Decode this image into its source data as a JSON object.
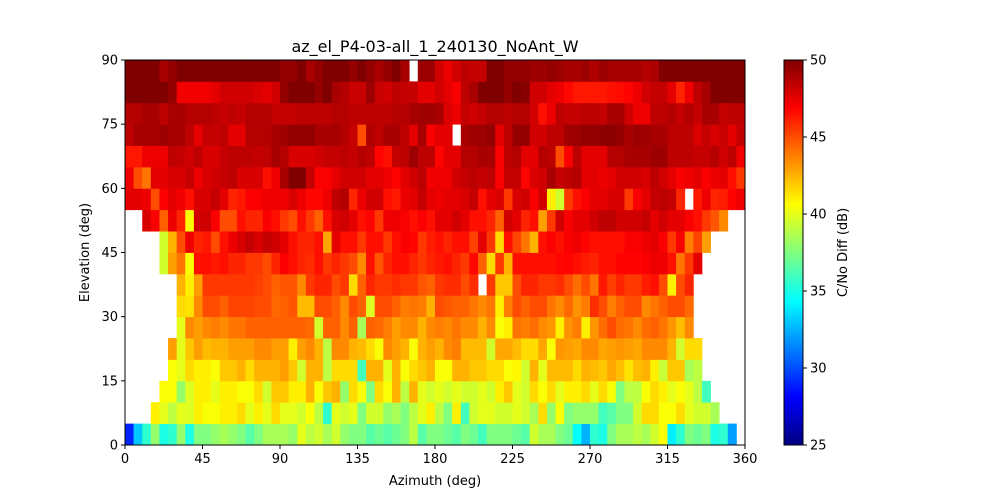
{
  "chart_data": {
    "type": "heatmap",
    "title": "az_el_P4-03-all_1_240130_NoAnt_W",
    "xlabel": "Azimuth (deg)",
    "ylabel": "Elevation (deg)",
    "xlim": [
      0,
      360
    ],
    "ylim": [
      0,
      90
    ],
    "x_bin_deg": 5,
    "y_bin_deg": 5,
    "xticks": [
      "0",
      "45",
      "90",
      "135",
      "180",
      "225",
      "270",
      "315",
      "360"
    ],
    "yticks": [
      "0",
      "15",
      "30",
      "45",
      "60",
      "75",
      "90"
    ],
    "colorbar": {
      "label": "C/No Diff (dB)",
      "colormap": "jet",
      "range": [
        25,
        50
      ],
      "ticks": [
        "25",
        "30",
        "35",
        "40",
        "45",
        "50"
      ]
    },
    "rows_order": "elevation 0-5 first, 85-90 last; columns azimuth 0-5 .. 355-360",
    "values": [
      [
        29,
        33,
        35.5,
        38,
        35,
        35.5,
        38,
        35,
        37.5,
        37.5,
        38,
        38.5,
        38,
        37.5,
        36.5,
        37.5,
        38.5,
        38.5,
        38.5,
        38,
        40,
        39,
        39.5,
        38.5,
        39.5,
        38,
        37.5,
        37.5,
        36.5,
        37,
        36.5,
        37,
        37.5,
        39,
        36.5,
        37.5,
        37.5,
        37,
        36.5,
        37.5,
        37,
        36,
        37.5,
        37.5,
        37.5,
        37,
        36.5,
        39.5,
        38.5,
        38.5,
        37.5,
        37,
        34.5,
        32.5,
        35.5,
        35,
        37.5,
        38.5,
        38.5,
        39,
        38.5,
        39.5,
        40.5,
        34,
        35.5,
        37.5,
        37,
        37.5,
        35,
        35.5,
        32,
        null
      ],
      [
        null,
        null,
        null,
        41,
        40,
        39,
        40,
        39.8,
        41,
        40.5,
        40.5,
        41,
        41,
        41.5,
        40,
        41,
        40,
        41.5,
        40,
        40,
        39.5,
        40.5,
        39,
        35.5,
        40,
        39.5,
        40,
        37.5,
        39.5,
        39.5,
        38,
        38.5,
        37.5,
        39,
        40,
        41,
        39,
        37.5,
        41,
        36,
        39.5,
        40,
        40,
        39.5,
        39.5,
        40,
        39.5,
        38.5,
        41.5,
        38,
        40.5,
        37.5,
        38,
        38,
        38,
        36,
        36.5,
        37.5,
        37.5,
        39.5,
        41.5,
        41.5,
        40.5,
        40.5,
        41.5,
        40,
        39.5,
        39.5,
        38.5,
        null,
        null,
        null
      ],
      [
        null,
        null,
        null,
        null,
        40.5,
        40.5,
        38,
        39.8,
        41,
        41,
        40,
        41,
        41,
        40.5,
        40.5,
        41.5,
        39.5,
        42,
        42,
        41,
        41,
        42.5,
        40.5,
        42,
        42.5,
        38,
        41.5,
        40.5,
        37.5,
        41.5,
        40.5,
        42.5,
        39,
        42.5,
        40,
        39.5,
        40,
        39.5,
        40,
        39.5,
        39.5,
        40,
        39.5,
        41,
        42,
        40,
        39.5,
        41.5,
        40.5,
        41.5,
        40,
        41,
        41,
        41.5,
        40,
        41.5,
        40.5,
        37.5,
        39,
        39,
        40.5,
        41.5,
        41,
        40,
        40.5,
        40,
        39,
        36,
        null,
        null,
        null,
        null
      ],
      [
        null,
        null,
        null,
        null,
        null,
        40.5,
        40,
        41.5,
        41,
        41,
        40.5,
        42,
        42,
        42.5,
        41.5,
        42.5,
        42.5,
        42.5,
        43,
        42,
        39.5,
        42.5,
        42.5,
        39,
        41.5,
        41.5,
        41.5,
        36,
        42.5,
        42.5,
        40,
        42.5,
        40.5,
        41.5,
        42,
        42.5,
        40.5,
        40.5,
        42.5,
        42.5,
        42,
        42,
        41.5,
        41.5,
        40.5,
        40.8,
        39.5,
        42.5,
        40,
        42.3,
        42.3,
        42.3,
        41.5,
        42.5,
        42.3,
        42,
        42.8,
        42.2,
        41.3,
        42.2,
        42.5,
        41,
        39.3,
        42,
        42,
        38.5,
        39,
        null,
        null,
        null,
        null,
        null
      ],
      [
        null,
        null,
        null,
        null,
        null,
        43,
        40,
        42,
        43,
        42.3,
        42.5,
        42.5,
        43,
        43,
        43,
        43.5,
        43.5,
        43,
        43,
        41,
        43,
        43.5,
        42.5,
        39,
        43.5,
        43.5,
        42.5,
        42.3,
        41.5,
        40.5,
        43.5,
        43,
        42.5,
        40.5,
        42.5,
        43,
        42.5,
        43.5,
        43.8,
        42.3,
        42.3,
        42.3,
        39.5,
        42.8,
        42.8,
        42.3,
        41.5,
        41.5,
        42.8,
        40.5,
        43.2,
        43,
        42.8,
        43.5,
        43.5,
        42.8,
        43,
        43.2,
        43,
        42.8,
        43.5,
        43.5,
        43.5,
        42.5,
        39.5,
        41.5,
        41.5,
        null,
        null,
        null,
        null,
        null
      ],
      [
        null,
        null,
        null,
        null,
        null,
        null,
        40,
        43.5,
        43,
        43.5,
        43.8,
        43.5,
        44,
        44,
        44.5,
        44.5,
        44.5,
        44.5,
        44.5,
        44.5,
        44.5,
        44.3,
        39.5,
        44.5,
        44.5,
        43.5,
        44.5,
        38.5,
        44.5,
        44.3,
        43.8,
        43,
        43.5,
        43.5,
        42.5,
        43.5,
        43.8,
        43.5,
        44,
        43.5,
        43.5,
        42.5,
        43.5,
        40.5,
        41,
        44,
        43.8,
        44.2,
        43.5,
        43.2,
        41,
        43.3,
        43.8,
        41,
        43.2,
        44.2,
        45,
        44.2,
        44,
        43.5,
        44.2,
        44.5,
        44,
        43.2,
        42.2,
        43.5,
        null,
        null,
        null,
        null,
        null,
        null
      ],
      [
        null,
        null,
        null,
        null,
        null,
        null,
        41.5,
        41.3,
        43.5,
        45,
        45,
        44.5,
        45.2,
        45.2,
        45.2,
        45,
        45,
        44.3,
        44.5,
        44.8,
        42.3,
        42.3,
        45,
        45,
        44.5,
        43.5,
        45,
        44.5,
        39.8,
        45,
        45,
        44.5,
        43.8,
        44,
        43.8,
        42.5,
        45,
        44.7,
        44.5,
        44.5,
        44,
        43.5,
        44,
        41,
        43.8,
        45,
        44.5,
        45,
        45,
        44,
        43.5,
        44.3,
        43.3,
        43.8,
        45.8,
        45,
        43.8,
        44.5,
        45,
        45,
        43.5,
        44,
        44.5,
        45,
        45,
        44.3,
        null,
        null,
        null,
        null,
        null,
        null
      ],
      [
        null,
        null,
        null,
        null,
        null,
        null,
        42.5,
        41,
        43,
        45.5,
        45.5,
        45.5,
        45.5,
        45.5,
        45.5,
        45.3,
        45,
        44.5,
        44.8,
        44.8,
        43.5,
        45.5,
        46,
        46,
        45,
        45.5,
        41.5,
        44.5,
        46,
        45.5,
        45.5,
        45.8,
        45.5,
        45.5,
        44.8,
        44.5,
        45.5,
        45.8,
        45.8,
        45,
        45.8,
        null,
        45.5,
        42,
        42,
        45,
        46,
        46,
        45.5,
        45.5,
        45.8,
        45,
        44.2,
        45,
        44,
        46.3,
        45.3,
        46,
        45.5,
        45.5,
        46.2,
        46.5,
        45,
        41,
        45,
        46,
        null,
        null,
        null,
        null,
        null,
        null
      ],
      [
        null,
        null,
        null,
        null,
        39.5,
        43,
        44,
        40.5,
        46.5,
        46.5,
        46.3,
        46.5,
        46,
        46,
        45.5,
        45.5,
        45,
        46,
        47,
        46.5,
        46,
        45.8,
        46.5,
        45.5,
        46,
        45.5,
        45,
        43.5,
        46.5,
        44.8,
        46,
        46.5,
        46.5,
        46,
        45.5,
        46,
        46.3,
        46.5,
        46,
        45.5,
        46.7,
        44.5,
        41.5,
        45.5,
        42.5,
        46.5,
        46.5,
        46.5,
        46.5,
        46.5,
        46.7,
        46.8,
        46.5,
        46.2,
        46,
        46.5,
        46.5,
        46.8,
        46.8,
        46.8,
        47,
        47.3,
        47.3,
        46.5,
        44,
        45.5,
        47.5,
        null,
        null,
        null,
        null,
        null
      ],
      [
        null,
        null,
        null,
        null,
        39.5,
        42.5,
        45,
        47.3,
        46,
        46.3,
        45,
        46.5,
        47.3,
        47.8,
        48.3,
        47.8,
        48.3,
        48,
        47.5,
        46.5,
        46,
        46,
        46.5,
        42.8,
        47.5,
        46.5,
        46.5,
        45.5,
        46.5,
        46.5,
        45.5,
        46.5,
        47,
        46.8,
        45.5,
        46.2,
        46.5,
        46,
        46.5,
        46.5,
        45.3,
        47.5,
        45.5,
        41.5,
        46.5,
        45.2,
        44,
        42.5,
        46.5,
        47,
        46.5,
        47,
        47.3,
        46.8,
        46.5,
        46.5,
        46.5,
        46.5,
        47,
        47,
        47.3,
        47.5,
        47,
        45.5,
        47,
        43.8,
        45.2,
        43,
        null,
        null,
        null,
        null
      ],
      [
        null,
        null,
        47.8,
        47,
        44.5,
        47.3,
        46,
        40.5,
        48,
        48,
        47,
        45,
        45,
        46.5,
        46,
        46,
        47,
        46.5,
        45.5,
        45,
        46.5,
        45.5,
        44.5,
        46.5,
        47.8,
        48,
        47.5,
        46.5,
        46.8,
        45.5,
        47.3,
        47.3,
        47,
        46.5,
        47,
        46.5,
        47.5,
        47.5,
        48,
        47.5,
        46.5,
        46.5,
        46,
        44.5,
        48,
        47.5,
        46,
        46.5,
        43,
        45.5,
        48,
        47,
        47.5,
        47.5,
        48,
        48.5,
        48.5,
        48,
        48,
        48,
        48.3,
        47.5,
        48,
        47.5,
        47.5,
        47,
        46.5,
        45.5,
        44.8,
        43.5,
        null,
        null
      ],
      [
        47.5,
        47.5,
        47.3,
        45,
        47,
        47.5,
        47.2,
        46.5,
        47.8,
        47.8,
        48.3,
        47.5,
        46,
        46.3,
        47,
        47,
        47.3,
        47.3,
        47.3,
        47.8,
        47.3,
        46.7,
        46.7,
        47.3,
        48.5,
        48.7,
        46,
        47.3,
        48,
        48,
        46.5,
        46.3,
        47.3,
        47.5,
        48.3,
        47.5,
        47.3,
        47.5,
        47.5,
        47.8,
        48.3,
        46.5,
        47.5,
        47.8,
        45.5,
        47.8,
        48,
        47,
        48,
        41,
        39.5,
        45.5,
        46.5,
        47,
        47.5,
        47.5,
        47.8,
        47.8,
        45.5,
        47,
        47.5,
        48.3,
        48.5,
        48.3,
        46,
        null,
        46.3,
        47.3,
        46,
        46.2,
        46.8,
        47.3
      ],
      [
        47.3,
        45,
        44,
        47.5,
        47.5,
        47.8,
        47.8,
        48.3,
        47.3,
        47.8,
        48,
        48.3,
        48.5,
        47.8,
        47.8,
        47.8,
        46.5,
        47.3,
        49,
        50,
        50,
        48.3,
        47,
        47,
        47.5,
        48,
        48,
        48,
        47.5,
        47.5,
        47.3,
        46.8,
        47.5,
        48,
        48.5,
        47.2,
        47.3,
        47.3,
        48,
        48.3,
        48.5,
        48.3,
        48.5,
        47,
        48.3,
        48.3,
        46.8,
        47.8,
        48,
        49,
        48.3,
        48.5,
        48.7,
        47.5,
        47.5,
        47.3,
        47.5,
        48,
        48,
        48,
        47.8,
        48.5,
        48,
        47.5,
        47,
        47.3,
        47.5,
        47,
        47.3,
        47.5,
        46.5,
        45.5
      ],
      [
        46.3,
        46.3,
        47.3,
        47.3,
        47.3,
        48.5,
        48.3,
        48,
        48.5,
        47.8,
        47.8,
        48.3,
        48.5,
        48.5,
        48.5,
        48.3,
        48.5,
        49,
        48.7,
        47.8,
        47.8,
        47.8,
        48,
        48.3,
        48.3,
        48.5,
        48.3,
        48.7,
        48.5,
        46.8,
        46.5,
        48.3,
        48.5,
        49.3,
        48.5,
        48.5,
        46.8,
        47.5,
        47.5,
        48.7,
        48.7,
        49,
        49,
        47,
        48.5,
        48.7,
        47.5,
        47.5,
        48.7,
        48.5,
        45,
        47,
        48.5,
        47.5,
        47.5,
        47.5,
        48.7,
        48.7,
        49,
        49,
        49,
        49.3,
        49.3,
        48.5,
        48.5,
        48.5,
        48.3,
        48.3,
        48.7,
        48,
        48.5,
        47.2
      ],
      [
        48.5,
        49,
        49,
        49,
        49.3,
        49,
        49,
        48.5,
        47.5,
        48.3,
        48.3,
        48.5,
        47.5,
        47.5,
        48.7,
        48.7,
        48.7,
        49,
        49.2,
        49.5,
        49.5,
        49.5,
        49,
        49,
        49,
        48.7,
        48.3,
        45,
        48.8,
        48.5,
        49,
        49,
        48.5,
        47.5,
        49,
        47,
        47.5,
        47.5,
        null,
        49,
        49.2,
        49.3,
        49.5,
        47.5,
        48.5,
        49.5,
        49.5,
        48,
        48,
        48.5,
        48.5,
        49.2,
        49.3,
        49.5,
        49.5,
        49.7,
        49.7,
        49.5,
        49,
        49.3,
        49.2,
        49,
        49,
        48.5,
        48.5,
        48.5,
        47.8,
        48.3,
        47.8,
        48.2,
        47.5,
        48.3
      ],
      [
        48.7,
        48.7,
        49,
        49,
        48.5,
        49,
        49,
        48.7,
        48.7,
        48.7,
        48.5,
        48.3,
        48.5,
        48.3,
        48.7,
        48.7,
        48.7,
        48.3,
        48.3,
        48.3,
        48.5,
        48.5,
        48.5,
        48.5,
        48.7,
        48.7,
        48.5,
        48.5,
        48.5,
        48.5,
        48.5,
        48.7,
        48.7,
        49,
        49.2,
        49.2,
        49,
        47.7,
        47.3,
        48.3,
        48,
        48.3,
        48.7,
        48.7,
        48.5,
        48.7,
        48.7,
        48,
        46.5,
        47.3,
        48.5,
        48.3,
        48.3,
        48.5,
        48.5,
        48.3,
        49,
        49,
        48,
        47.3,
        47.3,
        48.5,
        48.5,
        48.7,
        48.3,
        48.7,
        48.3,
        49,
        49,
        48.3,
        48.5,
        48.5
      ],
      [
        50,
        50,
        50,
        50,
        50,
        49.5,
        47.2,
        47.2,
        47.2,
        47.2,
        47.5,
        48,
        48,
        48,
        48,
        47.8,
        47.5,
        48,
        49.5,
        50,
        50,
        50,
        49.5,
        50,
        49,
        48.7,
        48.2,
        48.2,
        49.3,
        48.2,
        48,
        48.5,
        48.3,
        48.3,
        47.5,
        47.5,
        48,
        47.5,
        47,
        48.5,
        49,
        50,
        50,
        50,
        49.5,
        50,
        49.8,
        48,
        48,
        47.5,
        47.3,
        46.7,
        46.3,
        46.3,
        46.3,
        46.3,
        46.5,
        46.6,
        46.8,
        47.3,
        48,
        48.3,
        48.3,
        47.5,
        46,
        47.2,
        48.5,
        49,
        50,
        50,
        50,
        50
      ],
      [
        50,
        50,
        50,
        50,
        49,
        49.5,
        50,
        50,
        50,
        50,
        50,
        50,
        50,
        50,
        50,
        50,
        50,
        50,
        49.5,
        49.5,
        50,
        49,
        49.5,
        50,
        50,
        50,
        49.5,
        50,
        49.5,
        49,
        49.5,
        50,
        49,
        null,
        49.3,
        49.3,
        48,
        47.3,
        48,
        48.5,
        48.3,
        48.3,
        50,
        50,
        49.5,
        49.5,
        49.5,
        49.3,
        49.3,
        49.5,
        49.3,
        49,
        49,
        49.3,
        48.8,
        49.3,
        49,
        49,
        49,
        49,
        48.7,
        48.9,
        50,
        50,
        50,
        50,
        50,
        50,
        50,
        50,
        50,
        50
      ]
    ]
  }
}
